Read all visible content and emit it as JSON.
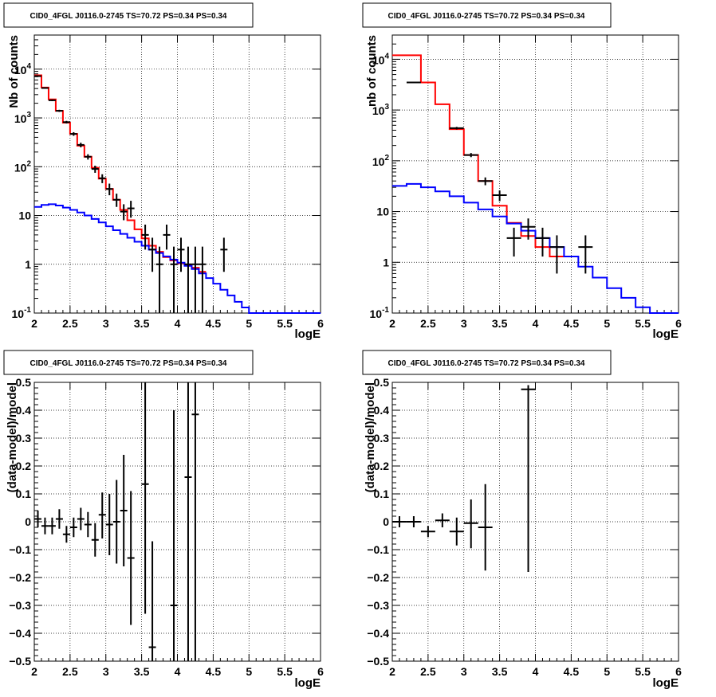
{
  "chart_data": [
    {
      "id": "p1",
      "type": "histogram",
      "title": "CID0_4FGL J0116.0-2745 TS=70.72 PS=0.34 PS=0.34",
      "xlabel": "logE",
      "ylabel": "Nb of counts",
      "xlim": [
        2,
        6
      ],
      "ylim": [
        0.1,
        50000
      ],
      "ylog": true,
      "grid": true,
      "xticks": [
        "2",
        "2.5",
        "3",
        "3.5",
        "4",
        "4.5",
        "5",
        "5.5",
        "6"
      ],
      "yticks": [
        {
          "v": 0.1,
          "base": "10",
          "exp": "-1"
        },
        {
          "v": 1,
          "text": "1"
        },
        {
          "v": 10,
          "text": "10"
        },
        {
          "v": 100,
          "base": "10",
          "exp": "2"
        },
        {
          "v": 1000,
          "base": "10",
          "exp": "3"
        },
        {
          "v": 10000,
          "base": "10",
          "exp": "4"
        }
      ],
      "series": [
        {
          "color": "#ff0000",
          "style": "step",
          "edges": [
            2,
            2.1,
            2.2,
            2.3,
            2.4,
            2.5,
            2.6,
            2.7,
            2.8,
            2.9,
            3.0,
            3.1,
            3.2,
            3.3,
            3.4,
            3.5,
            3.6,
            3.7,
            3.8,
            3.9,
            4.0,
            4.1,
            4.2,
            4.3,
            4.4
          ],
          "values": [
            7500,
            4200,
            2400,
            1400,
            800,
            470,
            270,
            160,
            95,
            57,
            35,
            21,
            13,
            8,
            5.2,
            3.4,
            2.4,
            1.8,
            1.4,
            1.2,
            1.05,
            0.95,
            0.85,
            0.7
          ]
        },
        {
          "color": "#0000ff",
          "style": "step",
          "edges": [
            2,
            2.1,
            2.2,
            2.3,
            2.4,
            2.5,
            2.6,
            2.7,
            2.8,
            2.9,
            3.0,
            3.1,
            3.2,
            3.3,
            3.4,
            3.5,
            3.6,
            3.7,
            3.8,
            3.9,
            4.0,
            4.1,
            4.2,
            4.3,
            4.4,
            4.5,
            4.6,
            4.7,
            4.8,
            4.9,
            5.0,
            5.1,
            5.2,
            5.3,
            5.4,
            5.5,
            5.6,
            5.7,
            5.8,
            5.9,
            6.0
          ],
          "values": [
            15,
            16.5,
            17,
            16,
            14.5,
            13,
            11.5,
            10,
            8.5,
            7.2,
            6,
            5,
            4.2,
            3.5,
            2.9,
            2.4,
            2.0,
            1.7,
            1.45,
            1.25,
            1.08,
            0.93,
            0.8,
            0.65,
            0.52,
            0.4,
            0.3,
            0.23,
            0.17,
            0.13,
            0.1,
            0.1,
            0.1,
            0.1,
            0.1,
            0.1,
            0.1,
            0.1,
            0.1,
            0.1
          ]
        }
      ],
      "points": [
        {
          "x": 2.05,
          "y": 7200,
          "xerr": 0.05,
          "ylo": 7050,
          "yhi": 7350
        },
        {
          "x": 2.15,
          "y": 4100,
          "xerr": 0.05,
          "ylo": 3980,
          "yhi": 4220
        },
        {
          "x": 2.25,
          "y": 2300,
          "xerr": 0.05,
          "ylo": 2210,
          "yhi": 2390
        },
        {
          "x": 2.35,
          "y": 1400,
          "xerr": 0.05,
          "ylo": 1330,
          "yhi": 1470
        },
        {
          "x": 2.45,
          "y": 820,
          "xerr": 0.05,
          "ylo": 770,
          "yhi": 870
        },
        {
          "x": 2.55,
          "y": 470,
          "xerr": 0.05,
          "ylo": 430,
          "yhi": 510
        },
        {
          "x": 2.65,
          "y": 280,
          "xerr": 0.05,
          "ylo": 250,
          "yhi": 310
        },
        {
          "x": 2.75,
          "y": 160,
          "xerr": 0.05,
          "ylo": 140,
          "yhi": 180
        },
        {
          "x": 2.85,
          "y": 90,
          "xerr": 0.05,
          "ylo": 75,
          "yhi": 105
        },
        {
          "x": 2.95,
          "y": 58,
          "xerr": 0.05,
          "ylo": 46,
          "yhi": 70
        },
        {
          "x": 3.05,
          "y": 35,
          "xerr": 0.05,
          "ylo": 26,
          "yhi": 45
        },
        {
          "x": 3.15,
          "y": 21,
          "xerr": 0.05,
          "ylo": 15,
          "yhi": 28
        },
        {
          "x": 3.25,
          "y": 12,
          "xerr": 0.05,
          "ylo": 8,
          "yhi": 17
        },
        {
          "x": 3.35,
          "y": 14,
          "xerr": 0.05,
          "ylo": 9,
          "yhi": 20
        },
        {
          "x": 3.55,
          "y": 4,
          "xerr": 0.05,
          "ylo": 2,
          "yhi": 6.5
        },
        {
          "x": 3.65,
          "y": 2,
          "xerr": 0.05,
          "ylo": 0.7,
          "yhi": 3.5
        },
        {
          "x": 3.75,
          "y": 1,
          "xerr": 0.05,
          "ylo": 0.1,
          "yhi": 2.3
        },
        {
          "x": 3.85,
          "y": 4,
          "xerr": 0.05,
          "ylo": 2,
          "yhi": 6.5
        },
        {
          "x": 3.95,
          "y": 1,
          "xerr": 0.05,
          "ylo": 0.1,
          "yhi": 2.3
        },
        {
          "x": 4.05,
          "y": 2,
          "xerr": 0.05,
          "ylo": 0.7,
          "yhi": 3.5
        },
        {
          "x": 4.15,
          "y": 1,
          "xerr": 0.05,
          "ylo": 0.1,
          "yhi": 2.3
        },
        {
          "x": 4.25,
          "y": 1,
          "xerr": 0.05,
          "ylo": 0.1,
          "yhi": 2.3
        },
        {
          "x": 4.35,
          "y": 1,
          "xerr": 0.05,
          "ylo": 0.1,
          "yhi": 2.3
        },
        {
          "x": 4.65,
          "y": 2,
          "xerr": 0.05,
          "ylo": 0.7,
          "yhi": 3.5
        }
      ]
    },
    {
      "id": "p2",
      "type": "histogram",
      "title": "CID0_4FGL J0116.0-2745 TS=70.72 PS=0.34 PS=0.34",
      "xlabel": "logE",
      "ylabel": "nb of counts",
      "xlim": [
        2,
        6
      ],
      "ylim": [
        0.1,
        30000
      ],
      "ylog": true,
      "grid": true,
      "xticks": [
        "2",
        "2.5",
        "3",
        "3.5",
        "4",
        "4.5",
        "5",
        "5.5",
        "6"
      ],
      "yticks": [
        {
          "v": 0.1,
          "base": "10",
          "exp": "-1"
        },
        {
          "v": 1,
          "text": "1"
        },
        {
          "v": 10,
          "text": "10"
        },
        {
          "v": 100,
          "base": "10",
          "exp": "2"
        },
        {
          "v": 1000,
          "base": "10",
          "exp": "3"
        },
        {
          "v": 10000,
          "base": "10",
          "exp": "4"
        }
      ],
      "series": [
        {
          "color": "#ff0000",
          "style": "step",
          "edges": [
            2,
            2.2,
            2.4,
            2.6,
            2.8,
            3.0,
            3.2,
            3.4,
            3.6,
            3.8,
            4.0,
            4.2,
            4.4
          ],
          "values": [
            12000,
            12000,
            3500,
            1300,
            420,
            130,
            40,
            13,
            6,
            3.3,
            2.0,
            1.3
          ]
        },
        {
          "color": "#0000ff",
          "style": "step",
          "edges": [
            2,
            2.2,
            2.4,
            2.6,
            2.8,
            3.0,
            3.2,
            3.4,
            3.6,
            3.8,
            4.0,
            4.2,
            4.4,
            4.6,
            4.8,
            5.0,
            5.2,
            5.4,
            5.6,
            5.8,
            6.0
          ],
          "values": [
            32,
            35,
            30,
            25,
            20,
            15,
            11,
            8,
            5.8,
            4.2,
            3.0,
            2.0,
            1.3,
            0.82,
            0.5,
            0.31,
            0.2,
            0.13,
            0.1,
            0.1
          ]
        }
      ],
      "points": [
        {
          "x": 2.3,
          "y": 3500,
          "xerr": 0.1,
          "ylo": 3400,
          "yhi": 3600
        },
        {
          "x": 2.9,
          "y": 440,
          "xerr": 0.1,
          "ylo": 415,
          "yhi": 465
        },
        {
          "x": 3.1,
          "y": 130,
          "xerr": 0.1,
          "ylo": 118,
          "yhi": 142
        },
        {
          "x": 3.3,
          "y": 40,
          "xerr": 0.1,
          "ylo": 33,
          "yhi": 47
        },
        {
          "x": 3.5,
          "y": 21,
          "xerr": 0.1,
          "ylo": 16,
          "yhi": 26
        },
        {
          "x": 3.7,
          "y": 3,
          "xerr": 0.1,
          "ylo": 1.3,
          "yhi": 4.8
        },
        {
          "x": 3.9,
          "y": 5,
          "xerr": 0.1,
          "ylo": 2.8,
          "yhi": 7.3
        },
        {
          "x": 4.1,
          "y": 3,
          "xerr": 0.1,
          "ylo": 1.3,
          "yhi": 4.8
        },
        {
          "x": 4.3,
          "y": 2,
          "xerr": 0.1,
          "ylo": 0.6,
          "yhi": 3.4
        },
        {
          "x": 4.7,
          "y": 2,
          "xerr": 0.1,
          "ylo": 0.6,
          "yhi": 3.4
        }
      ]
    },
    {
      "id": "p3",
      "type": "scatter",
      "title": "CID0_4FGL J0116.0-2745 TS=70.72 PS=0.34 PS=0.34",
      "xlabel": "logE",
      "ylabel": "(data-model)/model",
      "xlim": [
        2,
        6
      ],
      "ylim": [
        -0.5,
        0.5
      ],
      "ylog": false,
      "grid": true,
      "xticks": [
        "2",
        "2.5",
        "3",
        "3.5",
        "4",
        "4.5",
        "5",
        "5.5",
        "6"
      ],
      "yticks": [
        {
          "v": -0.5,
          "text": "−0.5"
        },
        {
          "v": -0.4,
          "text": "−0.4"
        },
        {
          "v": -0.3,
          "text": "−0.3"
        },
        {
          "v": -0.2,
          "text": "−0.2"
        },
        {
          "v": -0.1,
          "text": "−0.1"
        },
        {
          "v": 0,
          "text": "0"
        },
        {
          "v": 0.1,
          "text": "0.1"
        },
        {
          "v": 0.2,
          "text": "0.2"
        },
        {
          "v": 0.3,
          "text": "0.3"
        },
        {
          "v": 0.4,
          "text": "0.4"
        },
        {
          "v": 0.5,
          "text": "0.5"
        }
      ],
      "points": [
        {
          "x": 2.05,
          "y": 0.01,
          "xerr": 0.05,
          "ylo": -0.02,
          "yhi": 0.04
        },
        {
          "x": 2.15,
          "y": -0.015,
          "xerr": 0.05,
          "ylo": -0.045,
          "yhi": 0.015
        },
        {
          "x": 2.25,
          "y": -0.015,
          "xerr": 0.05,
          "ylo": -0.045,
          "yhi": 0.015
        },
        {
          "x": 2.35,
          "y": 0.01,
          "xerr": 0.05,
          "ylo": -0.025,
          "yhi": 0.045
        },
        {
          "x": 2.45,
          "y": -0.045,
          "xerr": 0.05,
          "ylo": -0.075,
          "yhi": -0.015
        },
        {
          "x": 2.55,
          "y": -0.02,
          "xerr": 0.05,
          "ylo": -0.055,
          "yhi": 0.015
        },
        {
          "x": 2.65,
          "y": 0.01,
          "xerr": 0.05,
          "ylo": -0.03,
          "yhi": 0.05
        },
        {
          "x": 2.75,
          "y": -0.01,
          "xerr": 0.05,
          "ylo": -0.055,
          "yhi": 0.035
        },
        {
          "x": 2.85,
          "y": -0.065,
          "xerr": 0.05,
          "ylo": -0.125,
          "yhi": -0.005
        },
        {
          "x": 2.95,
          "y": 0.025,
          "xerr": 0.05,
          "ylo": -0.06,
          "yhi": 0.105
        },
        {
          "x": 3.05,
          "y": -0.01,
          "xerr": 0.05,
          "ylo": -0.12,
          "yhi": 0.1
        },
        {
          "x": 3.15,
          "y": 0.0,
          "xerr": 0.05,
          "ylo": -0.15,
          "yhi": 0.15
        },
        {
          "x": 3.25,
          "y": 0.04,
          "xerr": 0.05,
          "ylo": -0.16,
          "yhi": 0.24
        },
        {
          "x": 3.35,
          "y": -0.13,
          "xerr": 0.05,
          "ylo": -0.37,
          "yhi": 0.11
        },
        {
          "x": 3.55,
          "y": 0.135,
          "xerr": 0.05,
          "ylo": -0.33,
          "yhi": 0.5
        },
        {
          "x": 3.65,
          "y": -0.45,
          "xerr": 0.05,
          "ylo": -0.5,
          "yhi": -0.07
        },
        {
          "x": 3.95,
          "y": -0.3,
          "xerr": 0.05,
          "ylo": -0.5,
          "yhi": 0.4
        },
        {
          "x": 4.15,
          "y": 0.16,
          "xerr": 0.05,
          "ylo": -0.5,
          "yhi": 0.5
        },
        {
          "x": 4.25,
          "y": 0.385,
          "xerr": 0.05,
          "ylo": -0.5,
          "yhi": 0.5
        }
      ]
    },
    {
      "id": "p4",
      "type": "scatter",
      "title": "CID0_4FGL J0116.0-2745 TS=70.72 PS=0.34 PS=0.34",
      "xlabel": "logE",
      "ylabel": "(data-model)/model",
      "xlim": [
        2,
        6
      ],
      "ylim": [
        -0.5,
        0.5
      ],
      "ylog": false,
      "grid": true,
      "xticks": [
        "2",
        "2.5",
        "3",
        "3.5",
        "4",
        "4.5",
        "5",
        "5.5",
        "6"
      ],
      "yticks": [
        {
          "v": -0.5,
          "text": "−0.5"
        },
        {
          "v": -0.4,
          "text": "−0.4"
        },
        {
          "v": -0.3,
          "text": "−0.3"
        },
        {
          "v": -0.2,
          "text": "−0.2"
        },
        {
          "v": -0.1,
          "text": "−0.1"
        },
        {
          "v": 0,
          "text": "0"
        },
        {
          "v": 0.1,
          "text": "0.1"
        },
        {
          "v": 0.2,
          "text": "0.2"
        },
        {
          "v": 0.3,
          "text": "0.3"
        },
        {
          "v": 0.4,
          "text": "0.4"
        },
        {
          "v": 0.5,
          "text": "0.5"
        }
      ],
      "points": [
        {
          "x": 2.1,
          "y": 0.0,
          "xerr": 0.1,
          "ylo": -0.02,
          "yhi": 0.02
        },
        {
          "x": 2.3,
          "y": 0.0,
          "xerr": 0.1,
          "ylo": -0.02,
          "yhi": 0.02
        },
        {
          "x": 2.5,
          "y": -0.035,
          "xerr": 0.1,
          "ylo": -0.055,
          "yhi": -0.015
        },
        {
          "x": 2.7,
          "y": 0.005,
          "xerr": 0.1,
          "ylo": -0.02,
          "yhi": 0.03
        },
        {
          "x": 2.9,
          "y": -0.035,
          "xerr": 0.1,
          "ylo": -0.085,
          "yhi": 0.015
        },
        {
          "x": 3.1,
          "y": -0.005,
          "xerr": 0.1,
          "ylo": -0.095,
          "yhi": 0.08
        },
        {
          "x": 3.3,
          "y": -0.02,
          "xerr": 0.1,
          "ylo": -0.175,
          "yhi": 0.135
        },
        {
          "x": 3.9,
          "y": 0.475,
          "xerr": 0.1,
          "ylo": -0.18,
          "yhi": 0.49
        }
      ]
    }
  ]
}
